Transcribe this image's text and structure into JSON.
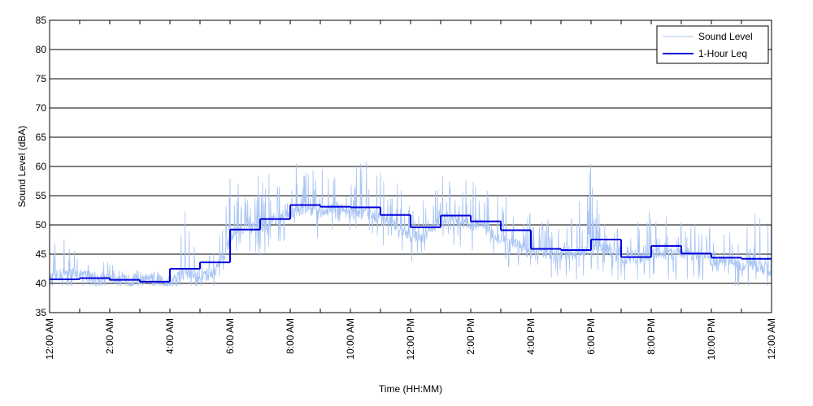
{
  "chart_data": {
    "type": "line",
    "title": "",
    "xlabel": "Time (HH:MM)",
    "ylabel": "Sound Level (dBA)",
    "ylim": [
      35,
      85
    ],
    "xlim": [
      0,
      24
    ],
    "y_ticks": [
      35,
      40,
      45,
      50,
      55,
      60,
      65,
      70,
      75,
      80,
      85
    ],
    "x_ticks": [
      0,
      2,
      4,
      6,
      8,
      10,
      12,
      14,
      16,
      18,
      20,
      22,
      24
    ],
    "x_tick_labels": [
      "12:00 AM",
      "2:00 AM",
      "4:00 AM",
      "6:00 AM",
      "8:00 AM",
      "10:00 AM",
      "12:00 PM",
      "2:00 PM",
      "4:00 PM",
      "6:00 PM",
      "8:00 PM",
      "10:00 PM",
      "12:00 AM"
    ],
    "grid": {
      "horizontal": true,
      "vertical": false
    },
    "legend_position": "top-right",
    "series": [
      {
        "name": "Sound Level",
        "style": "thin-noisy",
        "color": "#a8c4f4",
        "x": [
          0,
          0.5,
          1,
          1.5,
          2,
          2.5,
          3,
          3.5,
          4,
          4.5,
          5,
          5.5,
          6,
          6.5,
          7,
          7.5,
          8,
          8.5,
          9,
          9.5,
          10,
          10.5,
          11,
          11.5,
          12,
          12.5,
          13,
          13.5,
          14,
          14.5,
          15,
          15.5,
          16,
          16.5,
          17,
          17.5,
          18,
          18.5,
          19,
          19.5,
          20,
          20.5,
          21,
          21.5,
          22,
          22.5,
          23,
          23.5,
          24
        ],
        "values": [
          40.5,
          42,
          41.5,
          41,
          41,
          40.5,
          40.5,
          40.5,
          40,
          42,
          41,
          42,
          47,
          50,
          49,
          51,
          52,
          53,
          52,
          53,
          52,
          52,
          51,
          50,
          48,
          48,
          51,
          51,
          50,
          50,
          47,
          47,
          45,
          45,
          45,
          45,
          46,
          46,
          44,
          44,
          45,
          45,
          45,
          45,
          44,
          44,
          43,
          43,
          42
        ],
        "peaks": [
          46,
          49,
          44,
          43,
          44,
          42,
          43,
          42,
          42,
          53,
          44,
          46,
          58,
          57,
          61,
          59,
          61,
          60,
          60,
          59,
          61,
          61,
          61,
          58,
          56,
          55,
          59,
          57,
          58,
          56,
          58,
          53,
          52,
          52,
          51,
          53,
          61,
          52,
          49,
          51,
          53,
          52,
          51,
          50,
          50,
          49,
          48,
          54,
          54
        ]
      },
      {
        "name": "1-Hour Leq",
        "style": "step",
        "color": "#0000dd",
        "hours": [
          0,
          1,
          2,
          3,
          4,
          5,
          6,
          7,
          8,
          9,
          10,
          11,
          12,
          13,
          14,
          15,
          16,
          17,
          18,
          19,
          20,
          21,
          22,
          23
        ],
        "values": [
          40.7,
          40.9,
          40.6,
          40.3,
          42.5,
          43.6,
          49.2,
          51.0,
          53.4,
          53.1,
          53.0,
          51.7,
          49.6,
          51.6,
          50.6,
          49.1,
          45.9,
          45.7,
          47.5,
          44.5,
          46.4,
          45.1,
          44.4,
          44.2
        ]
      }
    ]
  }
}
